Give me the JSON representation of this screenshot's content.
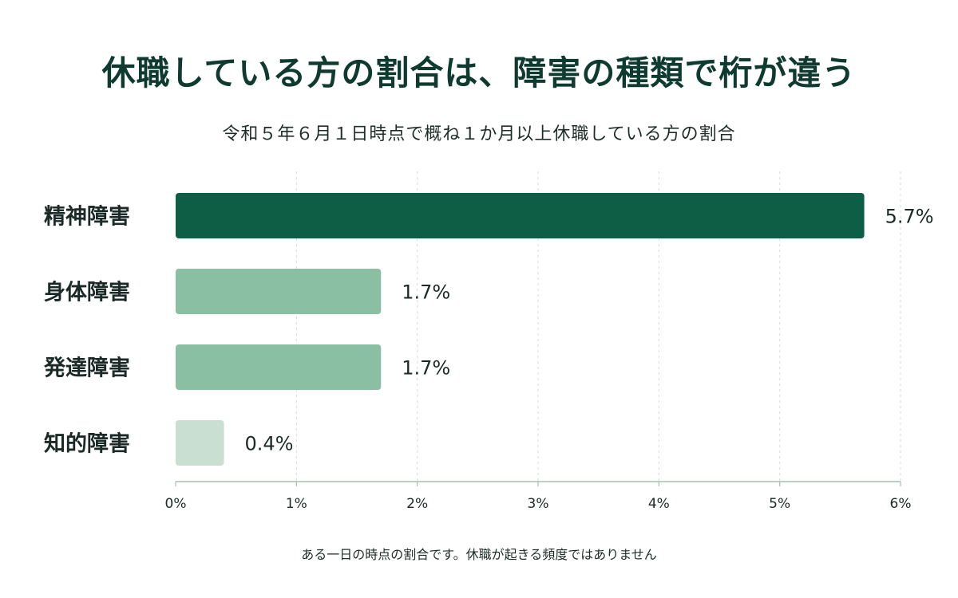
{
  "title": "休職している方の割合は、障害の種類で桁が違う",
  "subtitle": "令和５年６月１日時点で概ね１か月以上休職している方の割合",
  "footnote": "ある一日の時点の割合です。休職が起きる頻度ではありません",
  "chart_data": {
    "type": "bar",
    "orientation": "horizontal",
    "title": "休職している方の割合は、障害の種類で桁が違う",
    "subtitle": "令和５年６月１日時点で概ね１か月以上休職している方の割合",
    "categories": [
      "精神障害",
      "身体障害",
      "発達障害",
      "知的障害"
    ],
    "values": [
      5.7,
      1.7,
      1.7,
      0.4
    ],
    "value_labels": [
      "5.7%",
      "1.7%",
      "1.7%",
      "0.4%"
    ],
    "bar_colors": [
      "#0d5e44",
      "#8bbfa4",
      "#8bbfa4",
      "#c9dfd2"
    ],
    "xlim": [
      0,
      6
    ],
    "x_ticks": [
      0,
      1,
      2,
      3,
      4,
      5,
      6
    ],
    "x_tick_labels": [
      "0%",
      "1%",
      "2%",
      "3%",
      "4%",
      "5%",
      "6%"
    ],
    "grid": "vertical dashed",
    "legend": "none"
  }
}
